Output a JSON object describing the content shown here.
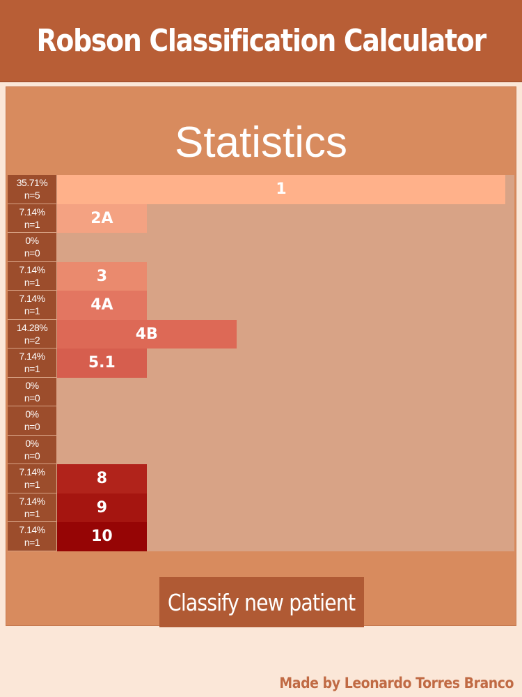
{
  "header": {
    "title": "Robson Classification Calculator"
  },
  "stats": {
    "title": "Statistics",
    "max_percent": 35.71,
    "rows": [
      {
        "group": "1",
        "percent_label": "35.71%",
        "n_label": "n=5",
        "percent": 35.71,
        "color": "#ffb18a"
      },
      {
        "group": "2A",
        "percent_label": "7.14%",
        "n_label": "n=1",
        "percent": 7.14,
        "color": "#f4a282"
      },
      {
        "group": "",
        "percent_label": "0%",
        "n_label": "n=0",
        "percent": 0,
        "color": "#ee9476"
      },
      {
        "group": "3",
        "percent_label": "7.14%",
        "n_label": "n=1",
        "percent": 7.14,
        "color": "#ea8a6e"
      },
      {
        "group": "4A",
        "percent_label": "7.14%",
        "n_label": "n=1",
        "percent": 7.14,
        "color": "#e37661"
      },
      {
        "group": "4B",
        "percent_label": "14.28%",
        "n_label": "n=2",
        "percent": 14.28,
        "color": "#dd6956"
      },
      {
        "group": "5.1",
        "percent_label": "7.14%",
        "n_label": "n=1",
        "percent": 7.14,
        "color": "#d65e4e"
      },
      {
        "group": "",
        "percent_label": "0%",
        "n_label": "n=0",
        "percent": 0,
        "color": "#cf5040"
      },
      {
        "group": "",
        "percent_label": "0%",
        "n_label": "n=0",
        "percent": 0,
        "color": "#c44536"
      },
      {
        "group": "",
        "percent_label": "0%",
        "n_label": "n=0",
        "percent": 0,
        "color": "#b9372b"
      },
      {
        "group": "8",
        "percent_label": "7.14%",
        "n_label": "n=1",
        "percent": 7.14,
        "color": "#b1231b"
      },
      {
        "group": "9",
        "percent_label": "7.14%",
        "n_label": "n=1",
        "percent": 7.14,
        "color": "#a51510"
      },
      {
        "group": "10",
        "percent_label": "7.14%",
        "n_label": "n=1",
        "percent": 7.14,
        "color": "#960505"
      }
    ]
  },
  "actions": {
    "classify_label": "Classify new patient"
  },
  "footer": {
    "credit": "Made by Leonardo Torres Branco"
  }
}
